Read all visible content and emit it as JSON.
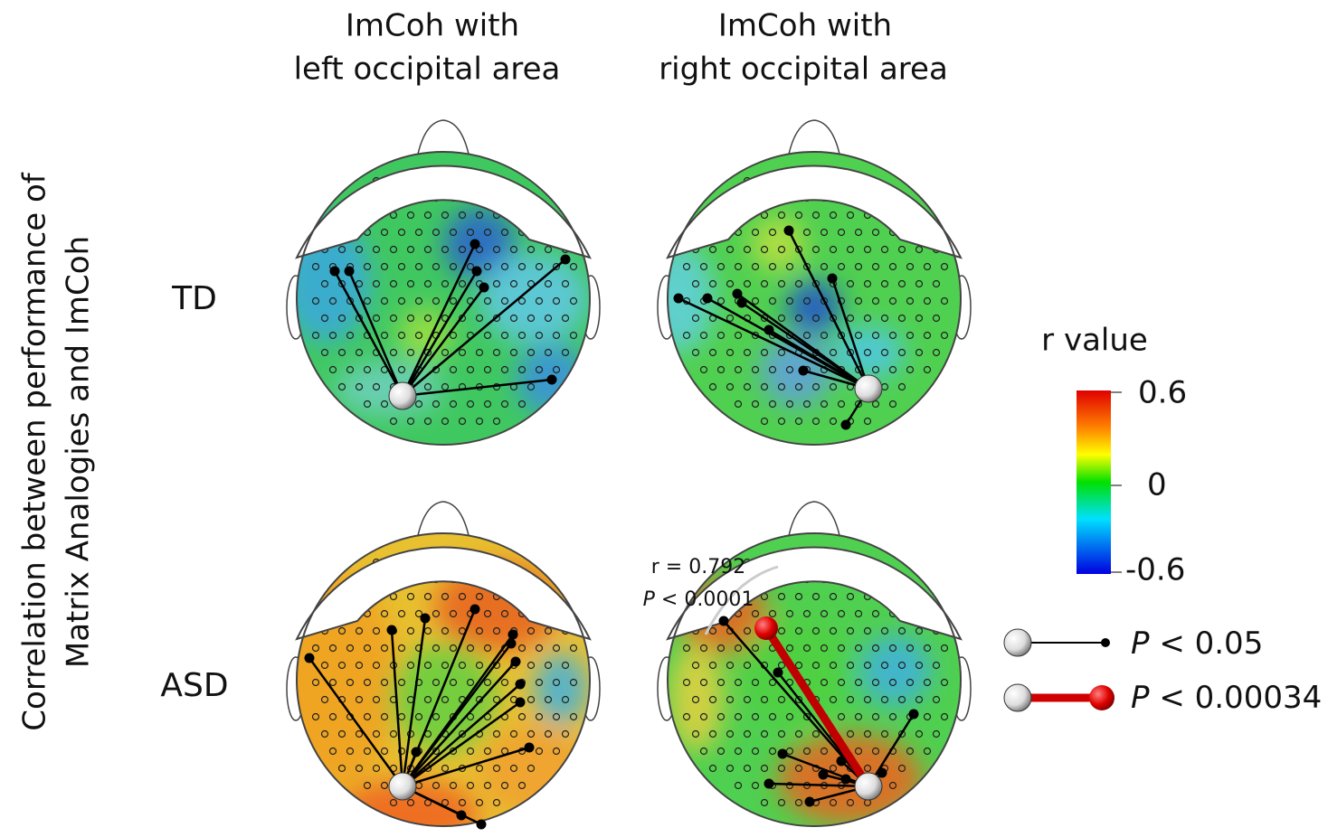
{
  "columns": [
    {
      "line1": "ImCoh with",
      "line2": "left occipital area"
    },
    {
      "line1": "ImCoh with",
      "line2": "right occipital area"
    }
  ],
  "y_label": {
    "line1": "Correlation between performance of",
    "line2": "Matrix Analogies and ImCoh"
  },
  "rows": [
    "TD",
    "ASD"
  ],
  "annotation": {
    "r": "r = 0.792",
    "p_symbol": "P",
    "p_text": " < 0.0001"
  },
  "colorbar": {
    "title": "r value",
    "ticks": [
      "0.6",
      "0",
      "-0.6"
    ]
  },
  "legend": [
    {
      "symbol": "P",
      "text": " < 0.05"
    },
    {
      "symbol": "P",
      "text": " < 0.00034"
    }
  ]
}
